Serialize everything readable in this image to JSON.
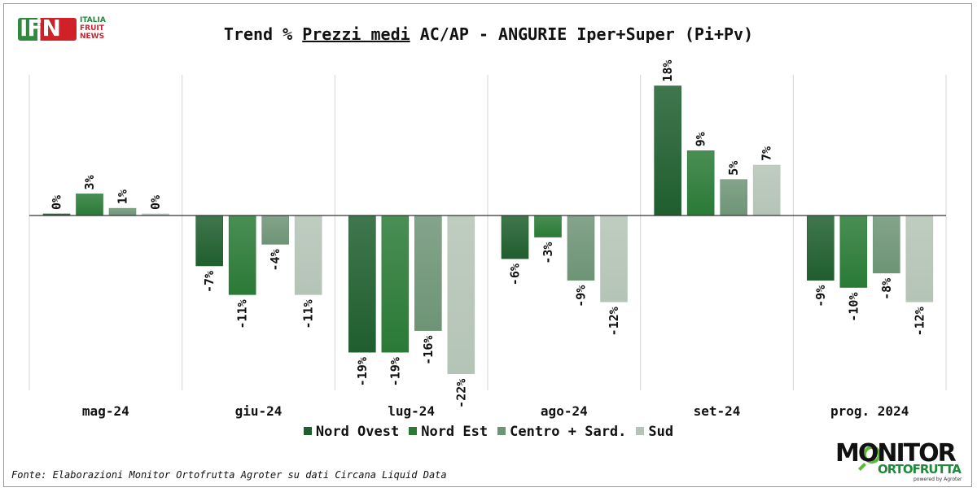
{
  "header": {
    "title_pre": "Trend % ",
    "title_emph": "Prezzi medi",
    "title_post": " AC/AP - ANGURIE Iper+Super (Pi+Pv)"
  },
  "logos": {
    "ifn": {
      "mark": "IFN",
      "line1": "ITALIA",
      "line2": "FRUIT",
      "line3": "NEWS"
    },
    "monitor": {
      "line1": "MONITOR",
      "line2": "ORTOFRUTTA",
      "line3": "powered by Agroter"
    }
  },
  "footer": {
    "source": "Fonte: Elaborazioni Monitor Ortofrutta Agroter su dati Circana Liquid Data"
  },
  "colors": {
    "nord_ovest": "#1f5e2e",
    "nord_est": "#2a7a36",
    "centro_sard": "#6e9476",
    "sud": "#b4c4b6",
    "accent": "#1e8a3a"
  },
  "chart_data": {
    "type": "bar",
    "categories": [
      "mag-24",
      "giu-24",
      "lug-24",
      "ago-24",
      "set-24",
      "prog. 2024"
    ],
    "series": [
      {
        "name": "Nord Ovest",
        "values": [
          0,
          -7,
          -19,
          -6,
          18,
          -9
        ],
        "labels": [
          "0%",
          "-7%",
          "-19%",
          "-6%",
          "18%",
          "-9%"
        ],
        "color": "#1f5e2e"
      },
      {
        "name": "Nord Est",
        "values": [
          3,
          -11,
          -19,
          -3,
          9,
          -10
        ],
        "labels": [
          "3%",
          "-11%",
          "-19%",
          "-3%",
          "9%",
          "-10%"
        ],
        "color": "#2a7a36"
      },
      {
        "name": "Centro + Sard.",
        "values": [
          1,
          -4,
          -16,
          -9,
          5,
          -8
        ],
        "labels": [
          "1%",
          "-4%",
          "-16%",
          "-9%",
          "5%",
          "-8%"
        ],
        "color": "#6e9476"
      },
      {
        "name": "Sud",
        "values": [
          0,
          -11,
          -22,
          -12,
          7,
          -12
        ],
        "labels": [
          "0%",
          "-11%",
          "-22%",
          "-12%",
          "7%",
          "-12%"
        ],
        "color": "#b4c4b6"
      }
    ],
    "ylim": [
      -24,
      20
    ],
    "grid": false,
    "legend_position": "bottom",
    "data_labels": "rotated"
  }
}
